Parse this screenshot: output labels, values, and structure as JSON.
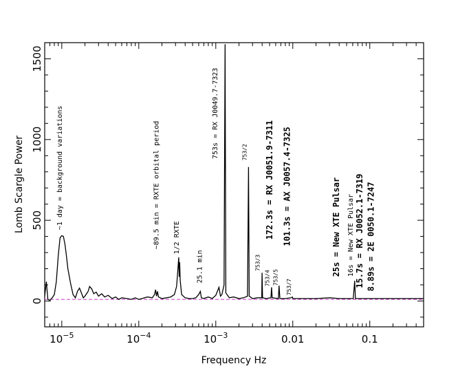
{
  "chart_data": {
    "type": "line",
    "title": "",
    "xlabel": "Frequency Hz",
    "ylabel": "Lomb Scargle Power",
    "x_scale": "log",
    "xlim": [
      6e-06,
      0.5
    ],
    "ylim": [
      -160,
      1600
    ],
    "x_ticks": [
      {
        "value": 1e-05,
        "label": "10",
        "exp": "−5"
      },
      {
        "value": 0.0001,
        "label": "10",
        "exp": "−4"
      },
      {
        "value": 0.001,
        "label": "10",
        "exp": "−3"
      },
      {
        "value": 0.01,
        "label": "0.01",
        "exp": ""
      },
      {
        "value": 0.1,
        "label": "0.1",
        "exp": ""
      }
    ],
    "y_ticks": [
      {
        "value": 0,
        "label": "0"
      },
      {
        "value": 500,
        "label": "500"
      },
      {
        "value": 1000,
        "label": "1000"
      },
      {
        "value": 1500,
        "label": "1500"
      }
    ],
    "threshold_line": {
      "y": 10,
      "color": "#cc33cc"
    },
    "series": [
      {
        "color": "#000000",
        "points": [
          [
            6e-06,
            30
          ],
          [
            6.3e-06,
            120
          ],
          [
            6.6e-06,
            10
          ],
          [
            7e-06,
            5
          ],
          [
            7.5e-06,
            20
          ],
          [
            8e-06,
            40
          ],
          [
            8.5e-06,
            120
          ],
          [
            9e-06,
            280
          ],
          [
            9.5e-06,
            390
          ],
          [
            1e-05,
            405
          ],
          [
            1.05e-05,
            400
          ],
          [
            1.1e-05,
            350
          ],
          [
            1.15e-05,
            280
          ],
          [
            1.2e-05,
            200
          ],
          [
            1.3e-05,
            110
          ],
          [
            1.4e-05,
            40
          ],
          [
            1.5e-05,
            20
          ],
          [
            1.6e-05,
            60
          ],
          [
            1.7e-05,
            80
          ],
          [
            1.8e-05,
            50
          ],
          [
            1.9e-05,
            20
          ],
          [
            2e-05,
            30
          ],
          [
            2.2e-05,
            60
          ],
          [
            2.3e-05,
            90
          ],
          [
            2.45e-05,
            75
          ],
          [
            2.6e-05,
            45
          ],
          [
            2.8e-05,
            55
          ],
          [
            3e-05,
            30
          ],
          [
            3.3e-05,
            45
          ],
          [
            3.6e-05,
            25
          ],
          [
            4e-05,
            35
          ],
          [
            4.5e-05,
            15
          ],
          [
            5e-05,
            25
          ],
          [
            5.5e-05,
            10
          ],
          [
            6e-05,
            20
          ],
          [
            7e-05,
            15
          ],
          [
            8e-05,
            10
          ],
          [
            9e-05,
            20
          ],
          [
            0.0001,
            10
          ],
          [
            0.00011,
            15
          ],
          [
            0.00013,
            25
          ],
          [
            0.00015,
            20
          ],
          [
            0.00016,
            40
          ],
          [
            0.000165,
            70
          ],
          [
            0.00017,
            30
          ],
          [
            0.000175,
            60
          ],
          [
            0.00018,
            25
          ],
          [
            0.0002,
            15
          ],
          [
            0.00023,
            20
          ],
          [
            0.00026,
            25
          ],
          [
            0.00029,
            40
          ],
          [
            0.00031,
            90
          ],
          [
            0.00032,
            180
          ],
          [
            0.00033,
            270
          ],
          [
            0.000335,
            150
          ],
          [
            0.00034,
            240
          ],
          [
            0.000345,
            130
          ],
          [
            0.00035,
            100
          ],
          [
            0.00036,
            40
          ],
          [
            0.0004,
            20
          ],
          [
            0.00045,
            15
          ],
          [
            0.0005,
            15
          ],
          [
            0.00055,
            20
          ],
          [
            0.0006,
            40
          ],
          [
            0.00063,
            60
          ],
          [
            0.00065,
            20
          ],
          [
            0.0007,
            15
          ],
          [
            0.0008,
            25
          ],
          [
            0.0009,
            15
          ],
          [
            0.001,
            35
          ],
          [
            0.0011,
            85
          ],
          [
            0.00115,
            30
          ],
          [
            0.0012,
            40
          ],
          [
            0.00128,
            100
          ],
          [
            0.00132,
            1590
          ],
          [
            0.00135,
            50
          ],
          [
            0.0015,
            20
          ],
          [
            0.0017,
            25
          ],
          [
            0.002,
            15
          ],
          [
            0.0023,
            20
          ],
          [
            0.00258,
            30
          ],
          [
            0.00266,
            830
          ],
          [
            0.00272,
            30
          ],
          [
            0.003,
            15
          ],
          [
            0.0035,
            20
          ],
          [
            0.00395,
            20
          ],
          [
            0.00399,
            175
          ],
          [
            0.00405,
            20
          ],
          [
            0.0045,
            15
          ],
          [
            0.0052,
            20
          ],
          [
            0.0053,
            85
          ],
          [
            0.0054,
            20
          ],
          [
            0.0065,
            15
          ],
          [
            0.00664,
            95
          ],
          [
            0.0068,
            15
          ],
          [
            0.008,
            15
          ],
          [
            0.0095,
            20
          ],
          [
            0.00987,
            25
          ],
          [
            0.01,
            15
          ],
          [
            0.015,
            15
          ],
          [
            0.02,
            15
          ],
          [
            0.03,
            20
          ],
          [
            0.04,
            15
          ],
          [
            0.05,
            15
          ],
          [
            0.061,
            15
          ],
          [
            0.0637,
            125
          ],
          [
            0.065,
            15
          ],
          [
            0.1,
            15
          ],
          [
            0.15,
            15
          ],
          [
            0.2,
            15
          ],
          [
            0.3,
            15
          ],
          [
            0.5,
            15
          ]
        ]
      }
    ],
    "annotations": [
      {
        "text": "~1 day = background variations",
        "x": 1e-05,
        "y": 440,
        "style": "normal"
      },
      {
        "text": "~89.5 min = RXTE orbital period",
        "x": 0.00018,
        "y": 320,
        "style": "normal"
      },
      {
        "text": "1/2 RXTE",
        "x": 0.00033,
        "y": 290,
        "style": "normal"
      },
      {
        "text": "25.1 min",
        "x": 0.00066,
        "y": 110,
        "style": "normal"
      },
      {
        "text": "753s = RX J0049.7-7323",
        "x": 0.00105,
        "y": 880,
        "style": "normal"
      },
      {
        "text": "753/2",
        "x": 0.0025,
        "y": 870,
        "style": "small"
      },
      {
        "text": "753/3",
        "x": 0.0037,
        "y": 185,
        "style": "small"
      },
      {
        "text": "753/4",
        "x": 0.00495,
        "y": 90,
        "style": "small"
      },
      {
        "text": "753/5",
        "x": 0.0063,
        "y": 95,
        "style": "small"
      },
      {
        "text": "753/7",
        "x": 0.0094,
        "y": 35,
        "style": "small"
      },
      {
        "text": "172.3s = RX J0051.9-7311",
        "x": 0.0054,
        "y": 380,
        "style": "bold"
      },
      {
        "text": "101.3s = AX J0057.4-7325",
        "x": 0.0092,
        "y": 340,
        "style": "bold"
      },
      {
        "text": "25s = New XTE Pulsar",
        "x": 0.04,
        "y": 150,
        "style": "bold"
      },
      {
        "text": "16s = New XTE Pulsar",
        "x": 0.06,
        "y": 150,
        "style": "normal"
      },
      {
        "text": "15.7s = RX J0052.1-7319",
        "x": 0.08,
        "y": 80,
        "style": "bold"
      },
      {
        "text": "8.89s = 2E 0050.1-7247",
        "x": 0.113,
        "y": 60,
        "style": "bold"
      }
    ]
  }
}
